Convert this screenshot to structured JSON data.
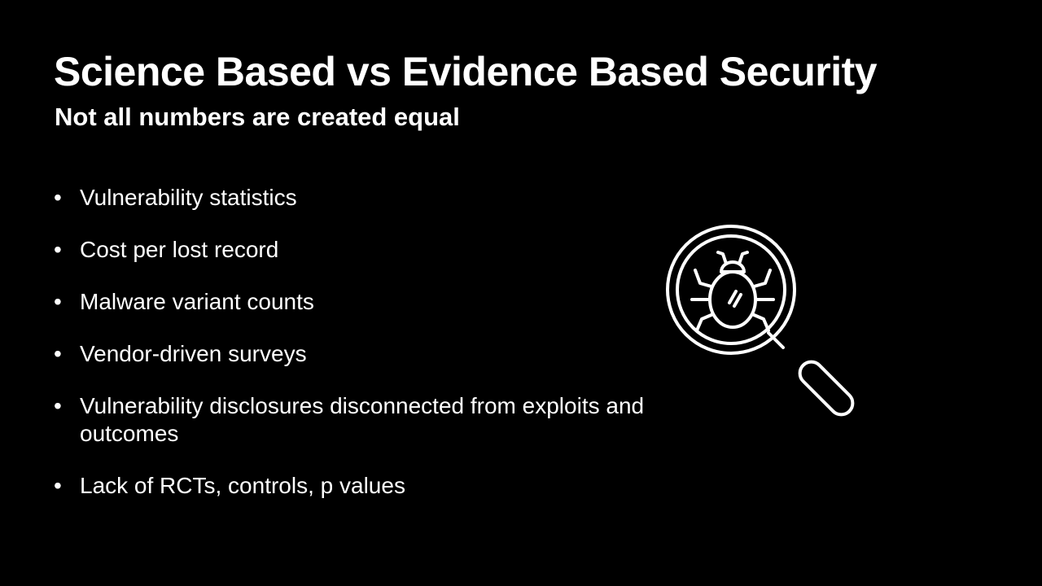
{
  "slide": {
    "title": "Science Based vs Evidence Based Security",
    "subtitle": "Not all numbers are created equal",
    "bullet_glyph": "•",
    "bullets": [
      {
        "text": "Vulnerability statistics"
      },
      {
        "text": "Cost per lost record"
      },
      {
        "text": "Malware variant counts"
      },
      {
        "text": "Vendor-driven surveys"
      },
      {
        "text": "Vulnerability disclosures disconnected from exploits and outcomes"
      },
      {
        "text": "Lack of RCTs, controls, p values"
      }
    ],
    "icon": "magnifying-glass-bug-icon",
    "colors": {
      "background": "#000000",
      "text": "#ffffff"
    }
  }
}
